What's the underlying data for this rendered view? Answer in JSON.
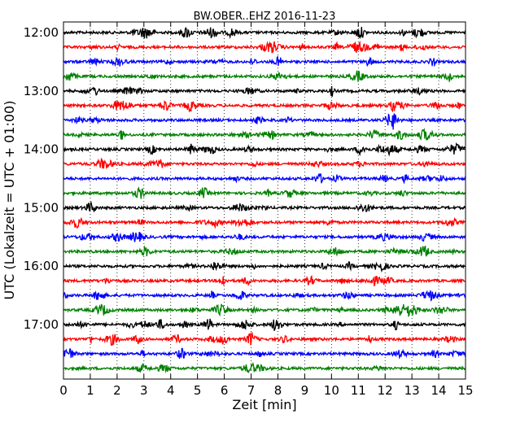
{
  "chart_data": {
    "type": "line",
    "title": "BW.OBER..EHZ 2016-11-23",
    "xlabel": "Zeit  [min]",
    "ylabel": "UTC (Lokalzeit = UTC + 01:00)",
    "xlim": [
      0,
      15
    ],
    "x_ticks": [
      "0",
      "1",
      "2",
      "3",
      "4",
      "5",
      "6",
      "7",
      "8",
      "9",
      "10",
      "11",
      "12",
      "13",
      "14",
      "15"
    ],
    "y_ticks": [
      "12:00",
      "13:00",
      "14:00",
      "15:00",
      "16:00",
      "17:00"
    ],
    "grid": "vertical dotted",
    "trace_colors": [
      "#000000",
      "#ff0000",
      "#0000ff",
      "#008000"
    ],
    "traces": [
      {
        "start": "12:00"
      },
      {
        "start": "12:15"
      },
      {
        "start": "12:30"
      },
      {
        "start": "12:45"
      },
      {
        "start": "13:00"
      },
      {
        "start": "13:15"
      },
      {
        "start": "13:30"
      },
      {
        "start": "13:45"
      },
      {
        "start": "14:00"
      },
      {
        "start": "14:15"
      },
      {
        "start": "14:30"
      },
      {
        "start": "14:45"
      },
      {
        "start": "15:00"
      },
      {
        "start": "15:15"
      },
      {
        "start": "15:30"
      },
      {
        "start": "15:45"
      },
      {
        "start": "16:00"
      },
      {
        "start": "16:15"
      },
      {
        "start": "16:30"
      },
      {
        "start": "16:45"
      },
      {
        "start": "17:00"
      },
      {
        "start": "17:15"
      },
      {
        "start": "17:30"
      },
      {
        "start": "17:45"
      }
    ]
  }
}
